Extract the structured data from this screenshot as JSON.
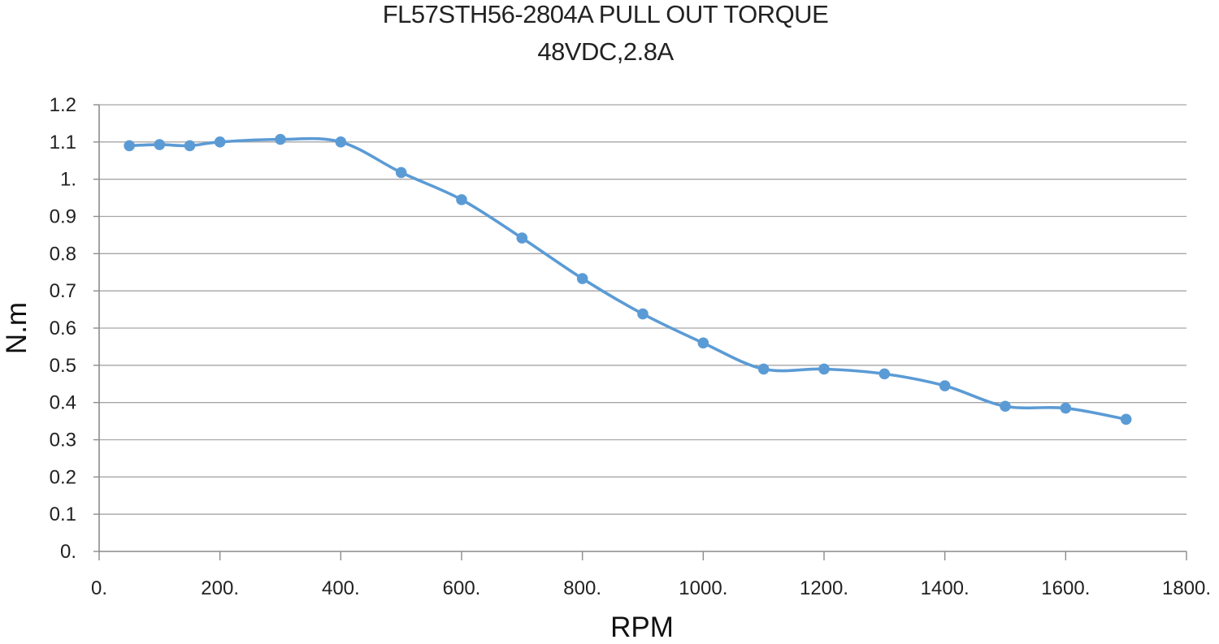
{
  "chart_data": {
    "type": "line",
    "title": "FL57STH56-2804A PULL OUT TORQUE",
    "subtitle": "48VDC,2.8A",
    "xlabel": "RPM",
    "ylabel": "N.m",
    "xlim": [
      0,
      1800
    ],
    "ylim": [
      0,
      1.2
    ],
    "x_ticks": [
      0,
      200,
      400,
      600,
      800,
      1000,
      1200,
      1400,
      1600,
      1800
    ],
    "x_tick_labels": [
      "0.",
      "200.",
      "400.",
      "600.",
      "800.",
      "1000.",
      "1200.",
      "1400.",
      "1600.",
      "1800."
    ],
    "y_ticks": [
      0,
      0.1,
      0.2,
      0.3,
      0.4,
      0.5,
      0.6,
      0.7,
      0.8,
      0.9,
      1.0,
      1.1,
      1.2
    ],
    "y_tick_labels": [
      "0.",
      "0.1",
      "0.2",
      "0.3",
      "0.4",
      "0.5",
      "0.6",
      "0.7",
      "0.8",
      "0.9",
      "1.",
      "1.1",
      "1.2"
    ],
    "grid": "horizontal",
    "legend": "none",
    "series": [
      {
        "color": "#5b9bd5",
        "marker": "circle",
        "smooth": true,
        "x": [
          50,
          100,
          150,
          200,
          300,
          400,
          500,
          600,
          700,
          800,
          900,
          1000,
          1100,
          1200,
          1300,
          1400,
          1500,
          1600,
          1700
        ],
        "y": [
          1.09,
          1.093,
          1.09,
          1.1,
          1.107,
          1.1,
          1.018,
          0.945,
          0.842,
          0.733,
          0.638,
          0.56,
          0.49,
          0.49,
          0.477,
          0.445,
          0.39,
          0.385,
          0.355
        ]
      }
    ]
  }
}
